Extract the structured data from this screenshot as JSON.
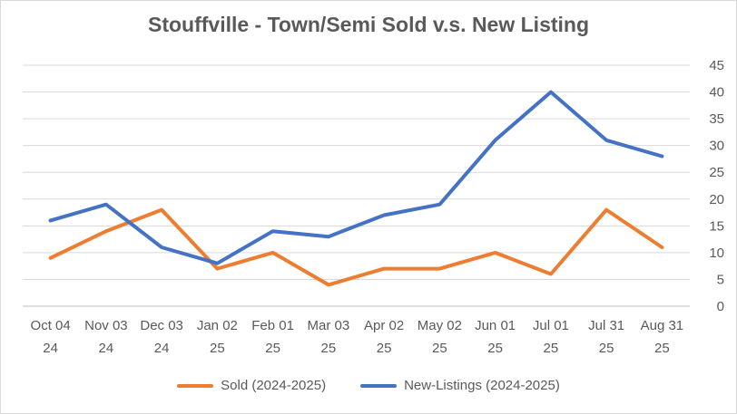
{
  "chart_data": {
    "type": "line",
    "title": "Stouffville - Town/Semi Sold v.s. New Listing",
    "xlabel": "",
    "ylabel": "",
    "categories": [
      [
        "Oct 04",
        "24"
      ],
      [
        "Nov 03",
        "24"
      ],
      [
        "Dec 03",
        "24"
      ],
      [
        "Jan 02",
        "25"
      ],
      [
        "Feb 01",
        "25"
      ],
      [
        "Mar 03",
        "25"
      ],
      [
        "Apr 02",
        "25"
      ],
      [
        "May 02",
        "25"
      ],
      [
        "Jun 01",
        "25"
      ],
      [
        "Jul 01",
        "25"
      ],
      [
        "Jul 31",
        "25"
      ],
      [
        "Aug 31",
        "25"
      ]
    ],
    "yaxis": {
      "position": "right",
      "ylim": [
        0,
        45
      ],
      "ticks": [
        0,
        5,
        10,
        15,
        20,
        25,
        30,
        35,
        40,
        45
      ]
    },
    "grid": true,
    "legend_position": "bottom",
    "series": [
      {
        "name": "Sold (2024-2025)",
        "color": "#ED7D31",
        "values": [
          9,
          14,
          18,
          7,
          10,
          4,
          7,
          7,
          10,
          6,
          18,
          11
        ]
      },
      {
        "name": "New-Listings (2024-2025)",
        "color": "#4472C4",
        "values": [
          16,
          19,
          11,
          8,
          14,
          13,
          17,
          19,
          31,
          40,
          31,
          28
        ]
      }
    ]
  }
}
